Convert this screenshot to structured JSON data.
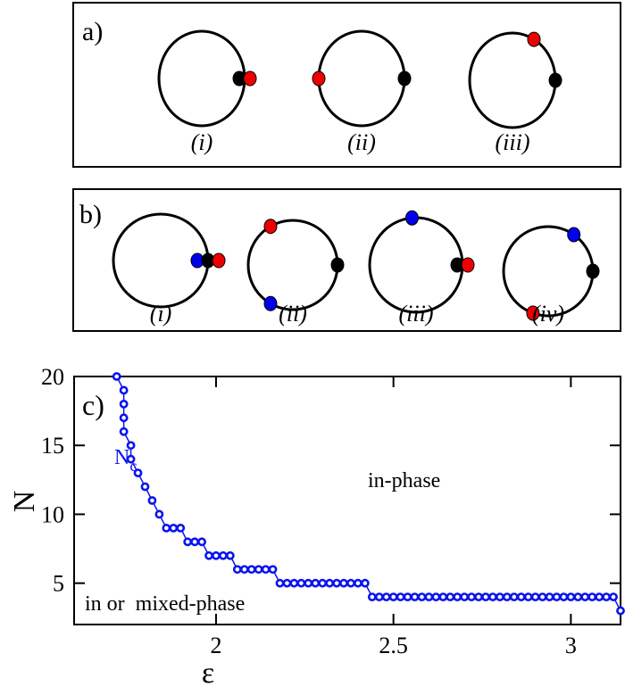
{
  "colors": {
    "frame": "#000000",
    "particle_black": "#000000",
    "particle_red": "#ee0000",
    "particle_blue": "#0000ee",
    "series": "#0a14ee"
  },
  "panel_a": {
    "label": "a)",
    "configs": [
      {
        "label": "(i)",
        "particles": [
          {
            "color": "black",
            "angle_deg": 0
          },
          {
            "color": "red",
            "angle_deg": 0
          }
        ]
      },
      {
        "label": "(ii)",
        "particles": [
          {
            "color": "black",
            "angle_deg": 0
          },
          {
            "color": "red",
            "angle_deg": 180
          }
        ]
      },
      {
        "label": "(iii)",
        "particles": [
          {
            "color": "black",
            "angle_deg": 0
          },
          {
            "color": "red",
            "angle_deg": 60
          }
        ]
      }
    ]
  },
  "panel_b": {
    "label": "b)",
    "configs": [
      {
        "label": "(i)",
        "particles": [
          {
            "color": "blue",
            "angle_deg": 0
          },
          {
            "color": "black",
            "angle_deg": 0
          },
          {
            "color": "red",
            "angle_deg": 0
          }
        ]
      },
      {
        "label": "(ii)",
        "particles": [
          {
            "color": "red",
            "angle_deg": 120
          },
          {
            "color": "blue",
            "angle_deg": 240
          },
          {
            "color": "black",
            "angle_deg": 0
          }
        ]
      },
      {
        "label": "(iii)",
        "particles": [
          {
            "color": "blue",
            "angle_deg": 95
          },
          {
            "color": "black",
            "angle_deg": 0
          },
          {
            "color": "red",
            "angle_deg": 0
          }
        ]
      },
      {
        "label": "(iv)",
        "particles": [
          {
            "color": "blue",
            "angle_deg": 55
          },
          {
            "color": "black",
            "angle_deg": 0
          },
          {
            "color": "red",
            "angle_deg": 250
          }
        ]
      }
    ]
  },
  "chart_data": {
    "type": "scatter",
    "panel_label": "c)",
    "xlabel": "ε",
    "ylabel": "N",
    "xlim": [
      1.6,
      3.14
    ],
    "ylim": [
      2,
      20
    ],
    "xticks": [
      2,
      2.5,
      3
    ],
    "xtick_labels": [
      "2",
      "2.5",
      "3"
    ],
    "yticks": [
      5,
      10,
      15,
      20
    ],
    "ytick_labels": [
      "5",
      "10",
      "15",
      "20"
    ],
    "grid": false,
    "series_label": {
      "main": "N",
      "sub": "c"
    },
    "annotations": [
      "in-phase",
      "in or  mixed-phase"
    ],
    "marker": "open-circle",
    "points": [
      [
        1.72,
        20
      ],
      [
        1.74,
        19
      ],
      [
        1.74,
        18
      ],
      [
        1.74,
        17
      ],
      [
        1.74,
        16
      ],
      [
        1.76,
        15
      ],
      [
        1.76,
        14
      ],
      [
        1.78,
        13
      ],
      [
        1.8,
        12
      ],
      [
        1.82,
        11
      ],
      [
        1.84,
        10
      ],
      [
        1.86,
        9
      ],
      [
        1.88,
        9
      ],
      [
        1.9,
        9
      ],
      [
        1.92,
        8
      ],
      [
        1.94,
        8
      ],
      [
        1.96,
        8
      ],
      [
        1.98,
        7
      ],
      [
        2.0,
        7
      ],
      [
        2.02,
        7
      ],
      [
        2.04,
        7
      ],
      [
        2.06,
        6
      ],
      [
        2.08,
        6
      ],
      [
        2.1,
        6
      ],
      [
        2.12,
        6
      ],
      [
        2.14,
        6
      ],
      [
        2.16,
        6
      ],
      [
        2.18,
        5
      ],
      [
        2.2,
        5
      ],
      [
        2.22,
        5
      ],
      [
        2.24,
        5
      ],
      [
        2.26,
        5
      ],
      [
        2.28,
        5
      ],
      [
        2.3,
        5
      ],
      [
        2.32,
        5
      ],
      [
        2.34,
        5
      ],
      [
        2.36,
        5
      ],
      [
        2.38,
        5
      ],
      [
        2.4,
        5
      ],
      [
        2.42,
        5
      ],
      [
        2.44,
        4
      ],
      [
        2.46,
        4
      ],
      [
        2.48,
        4
      ],
      [
        2.5,
        4
      ],
      [
        2.52,
        4
      ],
      [
        2.54,
        4
      ],
      [
        2.56,
        4
      ],
      [
        2.58,
        4
      ],
      [
        2.6,
        4
      ],
      [
        2.62,
        4
      ],
      [
        2.64,
        4
      ],
      [
        2.66,
        4
      ],
      [
        2.68,
        4
      ],
      [
        2.7,
        4
      ],
      [
        2.72,
        4
      ],
      [
        2.74,
        4
      ],
      [
        2.76,
        4
      ],
      [
        2.78,
        4
      ],
      [
        2.8,
        4
      ],
      [
        2.82,
        4
      ],
      [
        2.84,
        4
      ],
      [
        2.86,
        4
      ],
      [
        2.88,
        4
      ],
      [
        2.9,
        4
      ],
      [
        2.92,
        4
      ],
      [
        2.94,
        4
      ],
      [
        2.96,
        4
      ],
      [
        2.98,
        4
      ],
      [
        3.0,
        4
      ],
      [
        3.02,
        4
      ],
      [
        3.04,
        4
      ],
      [
        3.06,
        4
      ],
      [
        3.08,
        4
      ],
      [
        3.1,
        4
      ],
      [
        3.12,
        4
      ],
      [
        3.14,
        3
      ]
    ]
  }
}
